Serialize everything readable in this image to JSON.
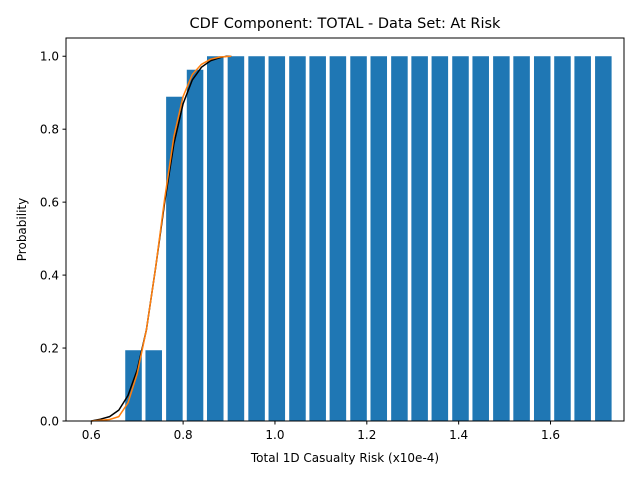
{
  "chart_data": {
    "type": "bar",
    "title": "CDF Component: TOTAL - Data Set: At Risk",
    "xlabel": "Total 1D Casualty Risk (x10e-4)",
    "ylabel": "Probability",
    "xlim": [
      0.545,
      1.76
    ],
    "ylim": [
      0.0,
      1.05
    ],
    "xticks": [
      "0.6",
      "0.8",
      "1.0",
      "1.2",
      "1.4",
      "1.6"
    ],
    "yticks": [
      "0.0",
      "0.2",
      "0.4",
      "0.6",
      "0.8",
      "1.0"
    ],
    "bar_color": "#1f77b4",
    "bar_width": 0.036,
    "bars": {
      "x": [
        0.692,
        0.736,
        0.781,
        0.826,
        0.87,
        0.915,
        0.96,
        1.004,
        1.049,
        1.093,
        1.137,
        1.182,
        1.226,
        1.271,
        1.315,
        1.359,
        1.404,
        1.448,
        1.493,
        1.537,
        1.582,
        1.626,
        1.67,
        1.715
      ],
      "values": [
        0.194,
        0.194,
        0.889,
        0.963,
        1.0,
        1.0,
        1.0,
        1.0,
        1.0,
        1.0,
        1.0,
        1.0,
        1.0,
        1.0,
        1.0,
        1.0,
        1.0,
        1.0,
        1.0,
        1.0,
        1.0,
        1.0,
        1.0,
        1.0
      ]
    },
    "series": [
      {
        "color": "#000000",
        "x": [
          0.6,
          0.62,
          0.64,
          0.66,
          0.68,
          0.7,
          0.72,
          0.74,
          0.76,
          0.78,
          0.8,
          0.82,
          0.84,
          0.86,
          0.88,
          0.895,
          0.905
        ],
        "y": [
          0.0,
          0.005,
          0.012,
          0.03,
          0.07,
          0.14,
          0.25,
          0.42,
          0.6,
          0.76,
          0.87,
          0.935,
          0.97,
          0.988,
          0.996,
          1.0,
          1.0
        ]
      },
      {
        "color": "#ff7f0e",
        "x": [
          0.6,
          0.64,
          0.66,
          0.68,
          0.7,
          0.72,
          0.74,
          0.76,
          0.78,
          0.8,
          0.82,
          0.84,
          0.86,
          0.88,
          0.905
        ],
        "y": [
          0.0,
          0.004,
          0.012,
          0.05,
          0.13,
          0.25,
          0.42,
          0.61,
          0.78,
          0.89,
          0.95,
          0.978,
          0.992,
          0.998,
          1.0
        ]
      }
    ]
  }
}
